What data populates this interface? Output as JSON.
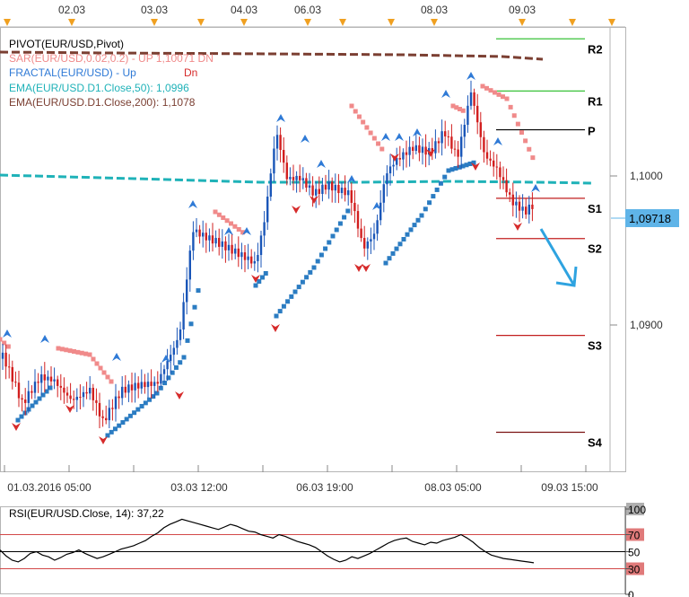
{
  "colors": {
    "bull_candle": "#1a56b8",
    "bear_candle": "#d21f1f",
    "ema50": "#1fb2b8",
    "ema200": "#7b3f32",
    "sar_up": "#2b7cc2",
    "sar_down": "#f08a8a",
    "fractal_up": "#2f7ad6",
    "fractal_down": "#d62b2b",
    "pivot_r": "#39c239",
    "pivot_p": "#000000",
    "pivot_s": "#c21f1f",
    "pivot_s_far": "#7a1212",
    "price_badge": "#5fb4e8",
    "arrow": "#2ea3e0",
    "rsi_line": "#000000",
    "rsi_levels": "#d24848",
    "rsi_scale_badge": "#e07a7a",
    "rsi_100_badge": "#b0b0b0"
  },
  "legend": [
    {
      "text": "PIVOT(EUR/USD,Pivot)",
      "color": "#000000"
    },
    {
      "text": "SAR(EUR/USD,0.02,0.2) - UP 1,10071 DN",
      "color": "#f08a8a"
    },
    {
      "text": "FRACTAL(EUR/USD) - Up",
      "color": "#2f7ad6",
      "extra": "Dn",
      "extra_color": "#d62b2b"
    },
    {
      "text": "EMA(EUR/USD.D1.Close,50): 1,0996",
      "color": "#1fb2b8"
    },
    {
      "text": "EMA(EUR/USD.D1.Close,200): 1,1078",
      "color": "#7b3f32"
    }
  ],
  "top_dates": [
    "02.03",
    "03.03",
    "04.03",
    "06.03",
    "08.03",
    "09.03"
  ],
  "bottom_dates": [
    "01.03.2016 05:00",
    "03.03 12:00",
    "06.03 19:00",
    "08.03 05:00",
    "09.03 15:00"
  ],
  "current_price_label": "1,09718",
  "rsi_title": "RSI(EUR/USD.Close, 14): 37,22",
  "chart_data": {
    "type": "candlestick",
    "symbol": "EUR/USD",
    "price_axis": {
      "ticks": [
        "1,1000",
        "1,0900"
      ],
      "tick_values": [
        1.1,
        1.09
      ],
      "range": [
        1.0815,
        1.1105
      ]
    },
    "pivot_levels": [
      {
        "label": "R2",
        "value": 1.1092
      },
      {
        "label": "R1",
        "value": 1.1057
      },
      {
        "label": "P",
        "value": 1.1031
      },
      {
        "label": "S1",
        "value": 1.0985
      },
      {
        "label": "S2",
        "value": 1.0958
      },
      {
        "label": "S3",
        "value": 1.0893
      },
      {
        "label": "S4",
        "value": 1.0828
      }
    ],
    "current_price": 1.09718,
    "ema50_value": 1.0996,
    "ema200_value": 1.1078,
    "sar_value": 1.10071,
    "rsi": {
      "value": 37.22,
      "levels": [
        70,
        50,
        30
      ],
      "scale": [
        "100",
        "70",
        "50",
        "30",
        "0"
      ],
      "series": [
        52,
        45,
        40,
        38,
        42,
        48,
        50,
        46,
        44,
        40,
        43,
        47,
        49,
        52,
        48,
        45,
        42,
        44,
        47,
        50,
        53,
        55,
        57,
        60,
        63,
        68,
        72,
        78,
        82,
        85,
        88,
        86,
        84,
        82,
        80,
        78,
        76,
        79,
        82,
        80,
        77,
        74,
        73,
        70,
        68,
        66,
        70,
        68,
        65,
        62,
        60,
        58,
        55,
        50,
        45,
        41,
        38,
        40,
        44,
        42,
        45,
        48,
        52,
        56,
        60,
        63,
        65,
        66,
        62,
        60,
        58,
        61,
        60,
        63,
        65,
        67,
        70,
        66,
        61,
        55,
        50,
        46,
        44,
        42,
        41,
        40,
        39,
        38,
        37
      ]
    }
  }
}
